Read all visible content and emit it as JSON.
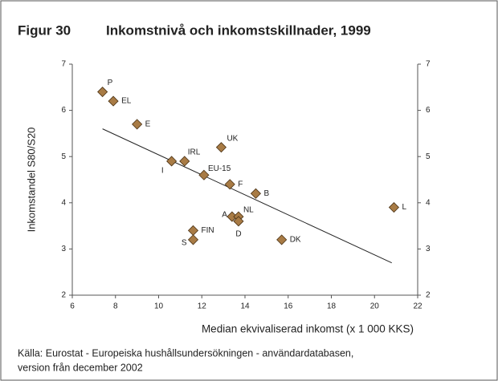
{
  "chart_data": {
    "type": "scatter",
    "figure_label": "Figur 30",
    "title": "Inkomstnivå och inkomstskillnader, 1999",
    "xlabel": "Median ekvivaliserad inkomst (x 1 000 KKS)",
    "ylabel": "Inkomstandel S80/S20",
    "source": [
      "Källa: Eurostat - Europeiska hushållsundersökningen - användardatabasen,",
      "version från december 2002"
    ],
    "color": "#a87b45",
    "points": {
      "labels": [
        "P",
        "EL",
        "E",
        "UK",
        "IRL",
        "I",
        "EU-15",
        "F",
        "B",
        "L",
        "A",
        "NL",
        "D",
        "FIN",
        "S",
        "DK"
      ],
      "x": [
        7.4,
        7.9,
        9.0,
        12.9,
        11.2,
        10.6,
        12.1,
        13.3,
        14.5,
        20.9,
        13.4,
        13.7,
        13.7,
        11.6,
        11.6,
        15.7
      ],
      "y": [
        6.4,
        6.2,
        5.7,
        5.2,
        4.9,
        4.9,
        4.6,
        4.4,
        4.2,
        3.9,
        3.7,
        3.7,
        3.6,
        3.4,
        3.2,
        3.2
      ]
    },
    "trendline": {
      "x": [
        7.4,
        20.8
      ],
      "y": [
        5.6,
        2.7
      ]
    },
    "xlim": [
      6,
      22
    ],
    "xticks": [
      6,
      8,
      10,
      12,
      14,
      16,
      18,
      20,
      22
    ],
    "ylim": [
      2,
      7
    ],
    "yticks": [
      2,
      3,
      4,
      5,
      6,
      7
    ],
    "y2lim": [
      2,
      7
    ],
    "y2ticks": [
      2,
      3,
      4,
      5,
      6,
      7
    ]
  }
}
